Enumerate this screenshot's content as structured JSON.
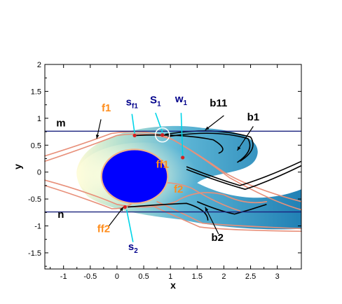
{
  "chart_data": {
    "type": "scatter",
    "title": "",
    "xlabel": "x",
    "ylabel": "y",
    "xlim": [
      -1.35,
      3.45
    ],
    "ylim": [
      -1.8,
      2.0
    ],
    "xticks": [
      "-1",
      "-0.5",
      "0",
      "0.5",
      "1",
      "1.5",
      "2",
      "2.5",
      "3"
    ],
    "yticks": [
      "2",
      "1.5",
      "1",
      "0.5",
      "0",
      "-0.5",
      "-1",
      "-1.5"
    ],
    "grid": false,
    "horizontal_lines": [
      {
        "label": "m",
        "y": 0.76
      },
      {
        "label": "n",
        "y": -0.74
      }
    ],
    "body": {
      "shape": "ellipse",
      "cx": 0.33,
      "cy": -0.08,
      "rx": 0.62,
      "ry": 0.5,
      "color": "#0000ff"
    },
    "labels": [
      {
        "text": "f1",
        "x": -0.2,
        "y": 1.13,
        "color": "#ff8c1a"
      },
      {
        "text": "ff1",
        "x": 0.85,
        "y": 0.08,
        "color": "#ff8c1a"
      },
      {
        "text": "f2",
        "x": 1.15,
        "y": -0.38,
        "color": "#ff8c1a"
      },
      {
        "text": "ff2",
        "x": -0.25,
        "y": -1.12,
        "color": "#ff8c1a"
      },
      {
        "text": "s",
        "sub": "f1",
        "x": 0.28,
        "y": 1.24,
        "color": "#00008b"
      },
      {
        "text": "S",
        "sub": "1",
        "x": 0.72,
        "y": 1.28,
        "color": "#00008b"
      },
      {
        "text": "w",
        "sub": "1",
        "x": 1.2,
        "y": 1.3,
        "color": "#00008b"
      },
      {
        "text": "s",
        "sub": "2",
        "x": 0.3,
        "y": -1.45,
        "color": "#00008b"
      },
      {
        "text": "b11",
        "x": 1.9,
        "y": 1.22,
        "color": "#000000"
      },
      {
        "text": "b1",
        "x": 2.55,
        "y": 0.96,
        "color": "#000000"
      },
      {
        "text": "b2",
        "x": 1.88,
        "y": -1.28,
        "color": "#000000"
      },
      {
        "text": "m",
        "x": -1.05,
        "y": 0.85,
        "color": "#000000"
      },
      {
        "text": "n",
        "x": -1.05,
        "y": -0.85,
        "color": "#000000"
      }
    ],
    "points": [
      {
        "name": "S1",
        "x": 0.85,
        "y": 0.69
      },
      {
        "name": "sf1",
        "x": 0.33,
        "y": 0.68
      },
      {
        "name": "w1",
        "x": 1.23,
        "y": 0.27
      },
      {
        "name": "s2",
        "x": 0.15,
        "y": -0.65
      }
    ]
  }
}
